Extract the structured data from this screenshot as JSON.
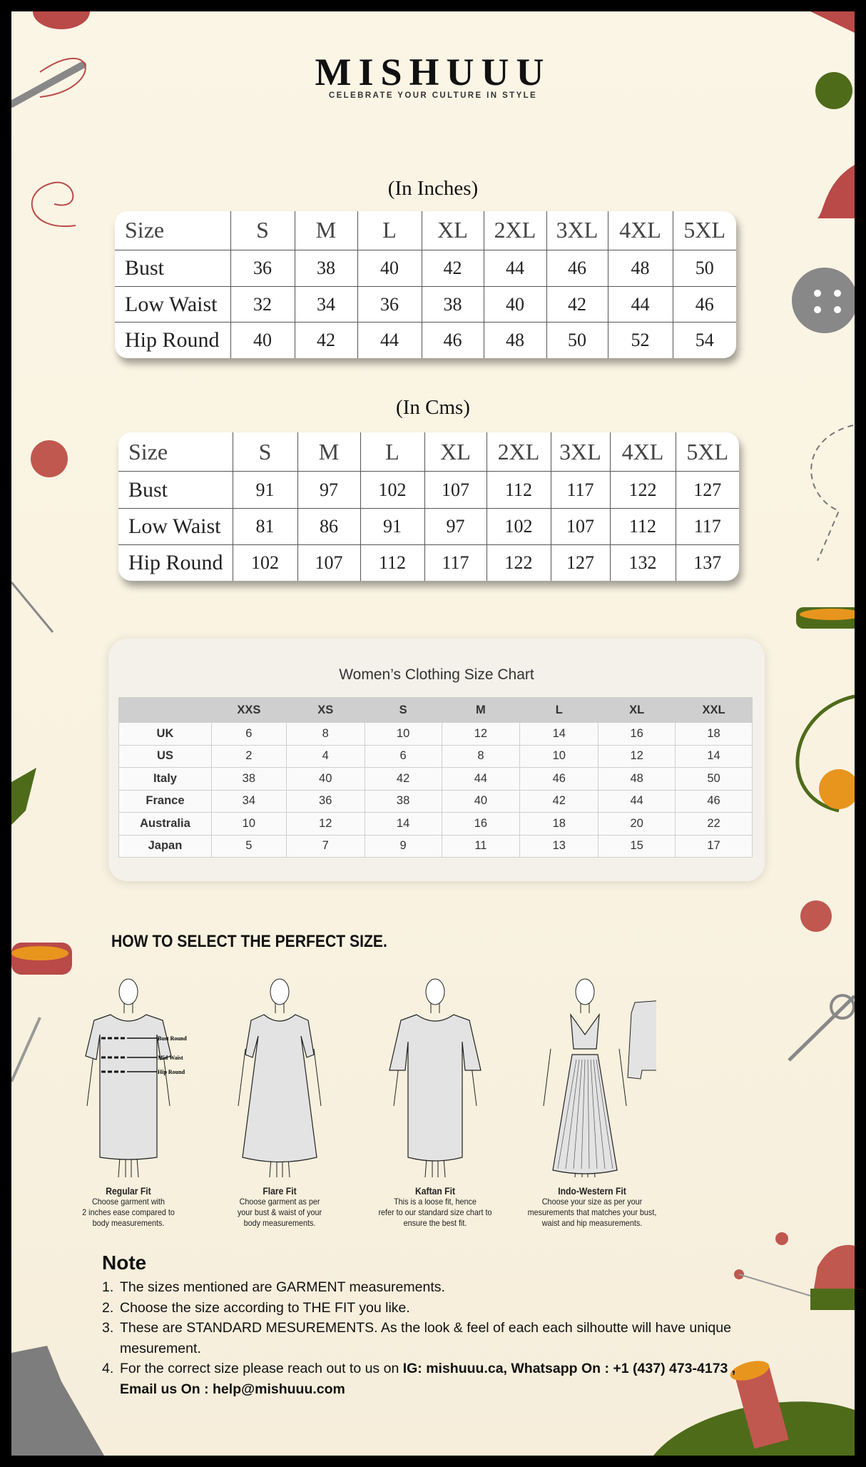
{
  "brand": {
    "logo": "MISHUUU",
    "tagline": "CELEBRATE YOUR CULTURE IN STYLE"
  },
  "inches": {
    "title": "(In Inches)",
    "header": [
      "Size",
      "S",
      "M",
      "L",
      "XL",
      "2XL",
      "3XL",
      "4XL",
      "5XL"
    ],
    "rows": [
      [
        "Bust",
        "36",
        "38",
        "40",
        "42",
        "44",
        "46",
        "48",
        "50"
      ],
      [
        "Low Waist",
        "32",
        "34",
        "36",
        "38",
        "40",
        "42",
        "44",
        "46"
      ],
      [
        "Hip Round",
        "40",
        "42",
        "44",
        "46",
        "48",
        "50",
        "52",
        "54"
      ]
    ]
  },
  "cms": {
    "title": "(In Cms)",
    "header": [
      "Size",
      "S",
      "M",
      "L",
      "XL",
      "2XL",
      "3XL",
      "4XL",
      "5XL"
    ],
    "rows": [
      [
        "Bust",
        "91",
        "97",
        "102",
        "107",
        "112",
        "117",
        "122",
        "127"
      ],
      [
        "Low Waist",
        "81",
        "86",
        "91",
        "97",
        "102",
        "107",
        "112",
        "117"
      ],
      [
        "Hip Round",
        "102",
        "107",
        "112",
        "117",
        "122",
        "127",
        "132",
        "137"
      ]
    ]
  },
  "womens": {
    "title": "Women’s Clothing Size Chart",
    "header": [
      "",
      "XXS",
      "XS",
      "S",
      "M",
      "L",
      "XL",
      "XXL"
    ],
    "rows": [
      [
        "UK",
        "6",
        "8",
        "10",
        "12",
        "14",
        "16",
        "18"
      ],
      [
        "US",
        "2",
        "4",
        "6",
        "8",
        "10",
        "12",
        "14"
      ],
      [
        "Italy",
        "38",
        "40",
        "42",
        "44",
        "46",
        "48",
        "50"
      ],
      [
        "France",
        "34",
        "36",
        "38",
        "40",
        "42",
        "44",
        "46"
      ],
      [
        "Australia",
        "10",
        "12",
        "14",
        "16",
        "18",
        "20",
        "22"
      ],
      [
        "Japan",
        "5",
        "7",
        "9",
        "11",
        "13",
        "15",
        "17"
      ]
    ]
  },
  "how": {
    "title": "HOW TO SELECT THE PERFECT SIZE.",
    "labels": [
      "Bust Round",
      "Mid Waist",
      "Hip Round"
    ],
    "fits": [
      {
        "name": "Regular Fit",
        "desc": [
          "Choose garment with",
          "2 inches ease compared to",
          "body measurements."
        ]
      },
      {
        "name": "Flare Fit",
        "desc": [
          "Choose garment as per",
          "your bust & waist of your",
          "body measurements."
        ]
      },
      {
        "name": "Kaftan Fit",
        "desc": [
          "This is a loose fit, hence",
          "refer to our standard size chart to",
          "ensure the best fit."
        ]
      },
      {
        "name": "Indo-Western Fit",
        "desc": [
          "Choose your size as per your",
          "mesurements that matches your bust,",
          "waist and hip measurements."
        ]
      }
    ]
  },
  "note": {
    "title": "Note",
    "items": [
      {
        "n": "1.",
        "text": "The sizes mentioned are GARMENT measurements."
      },
      {
        "n": "2.",
        "text": "Choose the size according to THE FIT you like."
      },
      {
        "n": "3.",
        "text": "These are STANDARD MESUREMENTS. As the look & feel of each each silhoutte will have unique mesurement."
      },
      {
        "n": "4.",
        "text": "For the correct size please reach out to us on ",
        "bold": "IG: mishuuu.ca, Whatsapp On : +1 (437) 473-4173 , Email us On : help@mishuuu.com"
      }
    ]
  },
  "colors": {
    "background": "#f9f2e0",
    "accent_red": "#b94a48",
    "accent_green": "#4e6b1a",
    "accent_orange": "#e8951e"
  }
}
